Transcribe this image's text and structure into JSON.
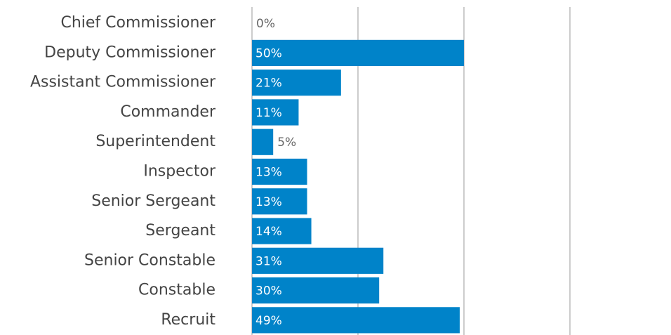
{
  "chart_data": {
    "type": "bar",
    "orientation": "horizontal",
    "categories": [
      "Chief Commissioner",
      "Deputy Commissioner",
      "Assistant Commissioner",
      "Commander",
      "Superintendent",
      "Inspector",
      "Senior Sergeant",
      "Sergeant",
      "Senior Constable",
      "Constable",
      "Recruit"
    ],
    "values": [
      0,
      50,
      21,
      11,
      5,
      13,
      13,
      14,
      31,
      30,
      49
    ],
    "value_labels": [
      "0%",
      "50%",
      "21%",
      "11%",
      "5%",
      "13%",
      "13%",
      "14%",
      "31%",
      "30%",
      "49%"
    ],
    "color": "#0083c9",
    "xlim": [
      0,
      75
    ],
    "xticks": [
      0,
      25,
      50,
      75
    ],
    "grid": true
  }
}
